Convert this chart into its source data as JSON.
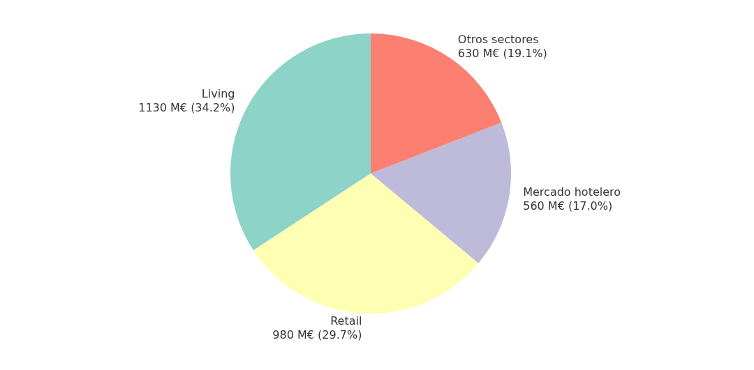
{
  "chart_data": {
    "type": "pie",
    "categories": [
      "Living",
      "Retail",
      "Mercado hotelero",
      "Otros sectores"
    ],
    "values": [
      1130,
      980,
      560,
      630
    ],
    "colors": [
      "#8dd3c7",
      "#ffffb3",
      "#bebada",
      "#fb8072"
    ],
    "value_labels": [
      "1130 M€ (34.2%)",
      "980 M€ (29.7%)",
      "560 M€ (17.0%)",
      "630 M€ (19.1%)"
    ]
  }
}
